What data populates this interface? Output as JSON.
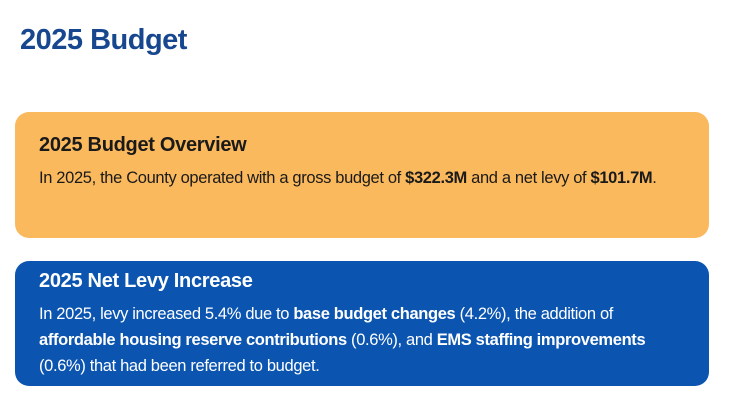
{
  "page": {
    "title": "2025 Budget"
  },
  "overview": {
    "heading": "2025 Budget Overview",
    "text_1": "In 2025, the County operated with a gross budget of ",
    "gross_budget": "$322.3M",
    "text_2": " and a net levy of ",
    "net_levy": "$101.7M",
    "text_3": ".",
    "background_color": "#fbb95d"
  },
  "levy_increase": {
    "heading": "2025 Net Levy Increase",
    "text_1": "In 2025, levy increased 5.4% due to ",
    "item_1": "base budget changes",
    "item_1_pct": " (4.2%), the addition of ",
    "item_2": "affordable housing reserve contributions",
    "item_2_pct": " (0.6%), and ",
    "item_3": "EMS staffing improvements",
    "item_3_pct": " (0.6%) that had been referred to budget.",
    "background_color": "#0b55b1"
  }
}
